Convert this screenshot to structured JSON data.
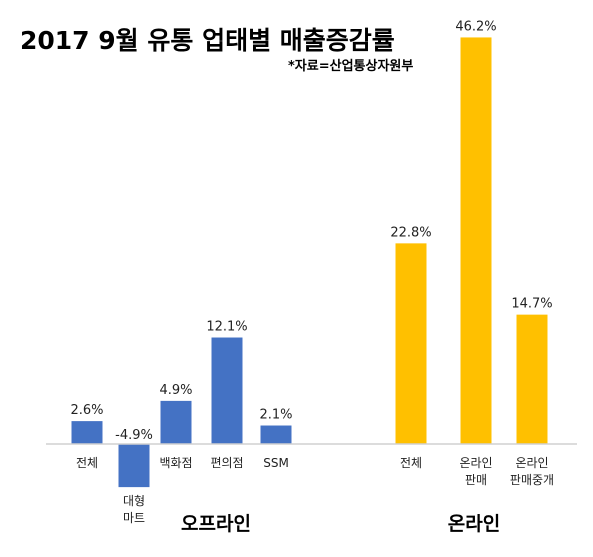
{
  "chart_data": {
    "type": "bar",
    "title": "2017 9월 유통 업태별 매출증감률",
    "subtitle": "*자료=산업통상자원부",
    "unit": "%",
    "groups": [
      {
        "name": "오프라인",
        "color": "#4472C4",
        "categories": [
          [
            "전체"
          ],
          [
            "대형",
            "마트"
          ],
          [
            "백화점"
          ],
          [
            "편의점"
          ],
          [
            "SSM"
          ]
        ],
        "values": [
          2.6,
          -4.9,
          4.9,
          12.1,
          2.1
        ],
        "labels": [
          "2.6%",
          "-4.9%",
          "4.9%",
          "12.1%",
          "2.1%"
        ]
      },
      {
        "name": "온라인",
        "color": "#FFC000",
        "categories": [
          [
            "전체"
          ],
          [
            "온라인",
            "판매"
          ],
          [
            "온라인",
            "판매중개"
          ]
        ],
        "values": [
          22.8,
          46.2,
          14.7
        ],
        "labels": [
          "22.8%",
          "46.2%",
          "14.7%"
        ]
      }
    ],
    "grid": false,
    "legend": "none"
  }
}
